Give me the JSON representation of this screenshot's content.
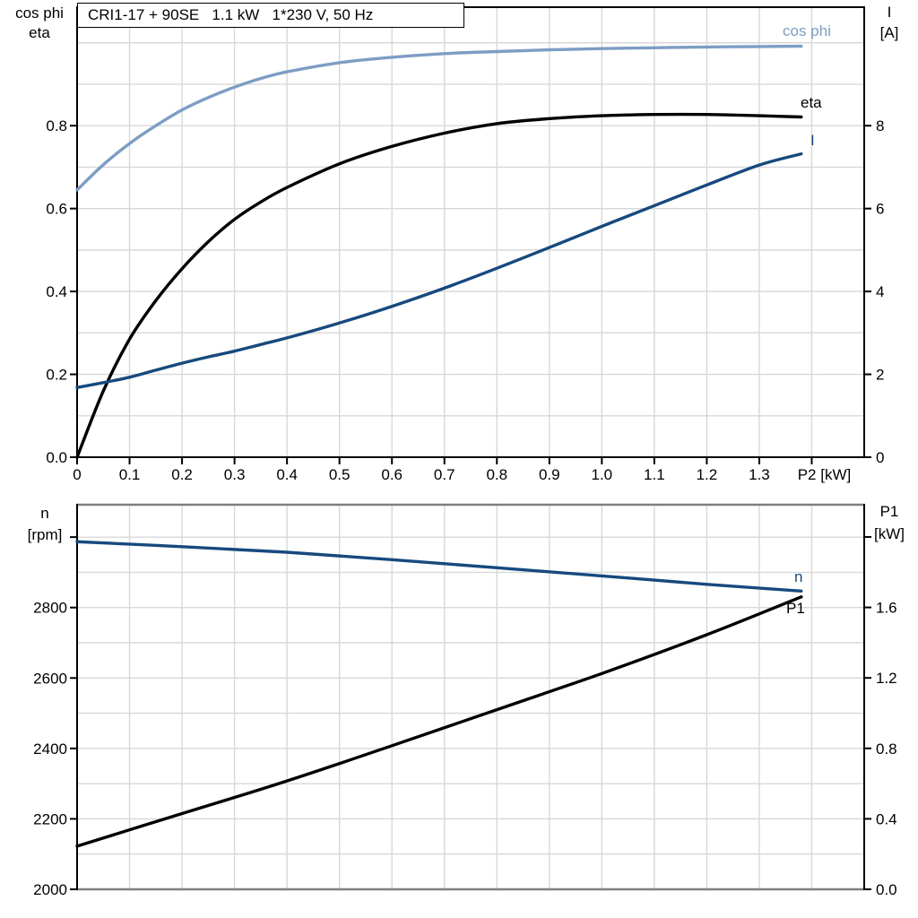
{
  "title_box": "CRI1-17 + 90SE   1.1 kW   1*230 V, 50 Hz",
  "colors": {
    "light_blue": "#7d9dc2",
    "dark_blue": "#164a7e",
    "black": "#000000",
    "grid": "#d8d8d8",
    "axis_gray": "#808080"
  },
  "top_chart": {
    "left_header_line1": "cos phi",
    "left_header_line2": "eta",
    "right_header_line1": "I",
    "right_header_line2": "[A]",
    "curve_labels": {
      "cos_phi": "cos phi",
      "eta": "eta",
      "current": "I"
    }
  },
  "bottom_chart": {
    "left_header_line1": "n",
    "left_header_line2": "[rpm]",
    "right_header_line1": "P1",
    "right_header_line2": "[kW]",
    "curve_labels": {
      "n": "n",
      "p1": "P1"
    }
  },
  "chart_data": [
    {
      "type": "line",
      "title": "CRI1-17 + 90SE 1.1 kW 1*230 V, 50 Hz",
      "xlabel": "P2 [kW]",
      "xlim": [
        0,
        1.5
      ],
      "grid": true,
      "legend_position": "right-of-curve-ends",
      "x_ticks": [
        {
          "v": 0,
          "label": "0"
        },
        {
          "v": 0.1,
          "label": "0.1"
        },
        {
          "v": 0.2,
          "label": "0.2"
        },
        {
          "v": 0.3,
          "label": "0.3"
        },
        {
          "v": 0.4,
          "label": "0.4"
        },
        {
          "v": 0.5,
          "label": "0.5"
        },
        {
          "v": 0.6,
          "label": "0.6"
        },
        {
          "v": 0.7,
          "label": "0.7"
        },
        {
          "v": 0.8,
          "label": "0.8"
        },
        {
          "v": 0.9,
          "label": "0.9"
        },
        {
          "v": 1.0,
          "label": "1.0"
        },
        {
          "v": 1.1,
          "label": "1.1"
        },
        {
          "v": 1.2,
          "label": "1.2"
        },
        {
          "v": 1.3,
          "label": "1.3"
        },
        {
          "v": 1.4,
          "label": "P2 [kW]",
          "dx": 14
        }
      ],
      "left_axis": {
        "label": "cos phi / eta",
        "lim": [
          0,
          1.086
        ],
        "ticks": [
          {
            "v": 0.0,
            "label": "0.0"
          },
          {
            "v": 0.2,
            "label": "0.2"
          },
          {
            "v": 0.4,
            "label": "0.4"
          },
          {
            "v": 0.6,
            "label": "0.6"
          },
          {
            "v": 0.8,
            "label": "0.8"
          }
        ],
        "grid_step": 0.1,
        "grid_from": 0.1,
        "grid_to": 1.0
      },
      "right_axis": {
        "label": "I [A]",
        "lim": [
          0,
          10.86
        ],
        "ticks": [
          {
            "v": 0,
            "label": "0"
          },
          {
            "v": 2,
            "label": "2"
          },
          {
            "v": 4,
            "label": "4"
          },
          {
            "v": 6,
            "label": "6"
          },
          {
            "v": 8,
            "label": "8"
          }
        ]
      },
      "grid_x": [
        0.1,
        0.2,
        0.3,
        0.4,
        0.5,
        0.6,
        0.7,
        0.8,
        0.9,
        1.0,
        1.1,
        1.2,
        1.3,
        1.4
      ],
      "series": [
        {
          "name": "cos phi",
          "id": "cos-phi",
          "axis": "left",
          "color": "#7d9dc2",
          "x": [
            0,
            0.05,
            0.1,
            0.15,
            0.2,
            0.25,
            0.3,
            0.35,
            0.4,
            0.5,
            0.6,
            0.7,
            0.8,
            0.9,
            1.0,
            1.1,
            1.2,
            1.3,
            1.38
          ],
          "values": [
            0.645,
            0.706,
            0.757,
            0.8,
            0.838,
            0.868,
            0.893,
            0.914,
            0.93,
            0.952,
            0.965,
            0.974,
            0.979,
            0.983,
            0.986,
            0.988,
            0.99,
            0.991,
            0.992
          ]
        },
        {
          "name": "eta",
          "id": "eta",
          "axis": "left",
          "color": "#000000",
          "x": [
            0,
            0.05,
            0.1,
            0.15,
            0.2,
            0.25,
            0.3,
            0.35,
            0.4,
            0.5,
            0.6,
            0.7,
            0.8,
            0.9,
            1.0,
            1.1,
            1.2,
            1.3,
            1.38
          ],
          "values": [
            0,
            0.16,
            0.285,
            0.378,
            0.455,
            0.52,
            0.574,
            0.616,
            0.651,
            0.708,
            0.75,
            0.782,
            0.805,
            0.817,
            0.824,
            0.827,
            0.827,
            0.824,
            0.821
          ]
        },
        {
          "name": "I",
          "id": "current-I",
          "axis": "right",
          "color": "#164a7e",
          "x": [
            0,
            0.05,
            0.1,
            0.15,
            0.2,
            0.25,
            0.3,
            0.35,
            0.4,
            0.5,
            0.6,
            0.7,
            0.8,
            0.9,
            1.0,
            1.1,
            1.2,
            1.3,
            1.38
          ],
          "values": [
            1.68,
            1.8,
            1.93,
            2.1,
            2.27,
            2.42,
            2.56,
            2.72,
            2.88,
            3.24,
            3.64,
            4.08,
            4.56,
            5.06,
            5.57,
            6.07,
            6.57,
            7.05,
            7.32
          ]
        }
      ]
    },
    {
      "type": "line",
      "title": "",
      "xlabel": "",
      "xlim": [
        0,
        1.5
      ],
      "grid": true,
      "x_ticks": [],
      "left_axis": {
        "label": "n [rpm]",
        "lim": [
          2000,
          3092
        ],
        "ticks": [
          {
            "v": 2000,
            "label": "2000"
          },
          {
            "v": 2200,
            "label": "2200"
          },
          {
            "v": 2400,
            "label": "2400"
          },
          {
            "v": 2600,
            "label": "2600"
          },
          {
            "v": 2800,
            "label": "2800"
          },
          {
            "v": 3000,
            "label": ""
          }
        ],
        "grid_step": 100,
        "grid_from": 2100,
        "grid_to": 3000
      },
      "right_axis": {
        "label": "P1 [kW]",
        "lim": [
          0,
          2.183
        ],
        "ticks": [
          {
            "v": 0.0,
            "label": "0.0"
          },
          {
            "v": 0.4,
            "label": "0.4"
          },
          {
            "v": 0.8,
            "label": "0.8"
          },
          {
            "v": 1.2,
            "label": "1.2"
          },
          {
            "v": 1.6,
            "label": "1.6"
          },
          {
            "v": 2.0,
            "label": ""
          }
        ]
      },
      "grid_x": [
        0.1,
        0.2,
        0.3,
        0.4,
        0.5,
        0.6,
        0.7,
        0.8,
        0.9,
        1.0,
        1.1,
        1.2,
        1.3,
        1.4
      ],
      "series": [
        {
          "name": "n",
          "id": "speed-n",
          "axis": "left",
          "color": "#164a7e",
          "x": [
            0,
            0.2,
            0.4,
            0.6,
            0.8,
            1.0,
            1.2,
            1.38
          ],
          "values": [
            2987,
            2973,
            2957,
            2936,
            2913,
            2890,
            2866,
            2847
          ]
        },
        {
          "name": "P1",
          "id": "power-P1",
          "axis": "right",
          "color": "#000000",
          "x": [
            0,
            0.2,
            0.4,
            0.6,
            0.8,
            1.0,
            1.2,
            1.38
          ],
          "values": [
            0.245,
            0.43,
            0.615,
            0.815,
            1.02,
            1.225,
            1.445,
            1.66
          ]
        }
      ]
    }
  ]
}
